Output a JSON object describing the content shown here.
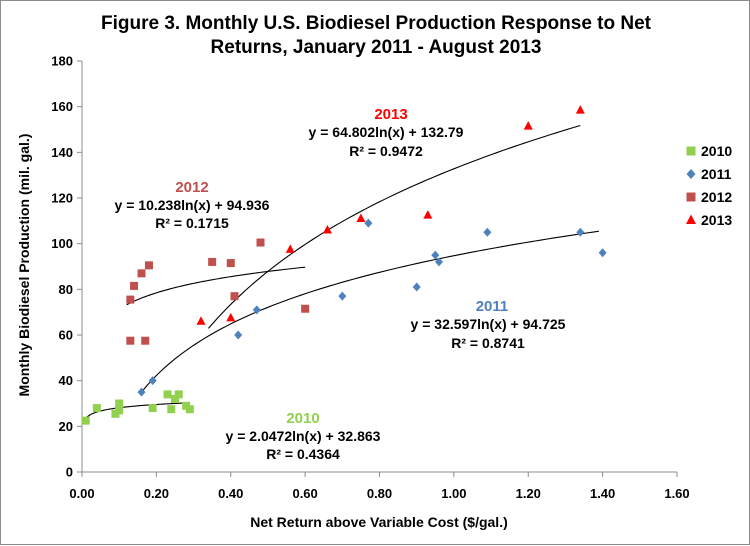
{
  "chart_data": {
    "type": "scatter",
    "title_lines": [
      "Figure 3. Monthly U.S. Biodiesel Production Response to Net",
      "Returns, January 2011 - August 2013"
    ],
    "xlabel": "Net Return above Variable Cost ($/gal.)",
    "ylabel": "Monthly Biodiesel Production (mil. gal.)",
    "xlim": [
      0,
      1.6
    ],
    "ylim": [
      0,
      180
    ],
    "x_ticks": [
      "0.00",
      "0.20",
      "0.40",
      "0.60",
      "0.80",
      "1.00",
      "1.20",
      "1.40",
      "1.60"
    ],
    "y_ticks": [
      "0",
      "20",
      "40",
      "60",
      "80",
      "100",
      "120",
      "140",
      "160",
      "180"
    ],
    "x_tick_values": [
      0,
      0.2,
      0.4,
      0.6,
      0.8,
      1.0,
      1.2,
      1.4,
      1.6
    ],
    "y_tick_values": [
      0,
      20,
      40,
      60,
      80,
      100,
      120,
      140,
      160,
      180
    ],
    "grid": false,
    "legend_position": "right",
    "series": [
      {
        "name": "2010",
        "color": "#92d050",
        "marker": "square",
        "points": [
          [
            0.01,
            22.5
          ],
          [
            0.04,
            28
          ],
          [
            0.09,
            25.5
          ],
          [
            0.1,
            27
          ],
          [
            0.1,
            30
          ],
          [
            0.19,
            28
          ],
          [
            0.23,
            34
          ],
          [
            0.24,
            27.5
          ],
          [
            0.25,
            32
          ],
          [
            0.26,
            34
          ],
          [
            0.28,
            29
          ],
          [
            0.29,
            27.5
          ]
        ],
        "trend": {
          "a": 2.0472,
          "b": 32.863,
          "x_range": [
            0.0,
            0.28
          ]
        },
        "equation": "y = 2.0472ln(x) + 32.863",
        "r2": "R² = 0.4364"
      },
      {
        "name": "2011",
        "color": "#4f81bd",
        "marker": "diamond",
        "points": [
          [
            0.16,
            35
          ],
          [
            0.19,
            40
          ],
          [
            0.42,
            60
          ],
          [
            0.47,
            71
          ],
          [
            0.7,
            77
          ],
          [
            0.77,
            109
          ],
          [
            0.9,
            81
          ],
          [
            0.95,
            95
          ],
          [
            0.96,
            92
          ],
          [
            1.09,
            105
          ],
          [
            1.34,
            105
          ],
          [
            1.4,
            96
          ]
        ],
        "trend": {
          "a": 32.597,
          "b": 94.725,
          "x_range": [
            0.16,
            1.39
          ]
        },
        "equation": "y = 32.597ln(x) + 94.725",
        "r2": "R² = 0.8741"
      },
      {
        "name": "2012",
        "color": "#c0504d",
        "marker": "square",
        "points": [
          [
            0.13,
            75.5
          ],
          [
            0.13,
            57.5
          ],
          [
            0.14,
            81.5
          ],
          [
            0.16,
            87
          ],
          [
            0.17,
            57.5
          ],
          [
            0.18,
            90.5
          ],
          [
            0.35,
            92
          ],
          [
            0.4,
            91.5
          ],
          [
            0.41,
            77
          ],
          [
            0.48,
            100.5
          ],
          [
            0.6,
            71.5
          ]
        ],
        "trend": {
          "a": 10.238,
          "b": 94.936,
          "x_range": [
            0.12,
            0.6
          ]
        },
        "equation": "y = 10.238ln(x) + 94.936",
        "r2": "R² = 0.1715"
      },
      {
        "name": "2013",
        "color": "#ff0000",
        "marker": "triangle",
        "points": [
          [
            0.32,
            66
          ],
          [
            0.4,
            67.5
          ],
          [
            0.56,
            97.5
          ],
          [
            0.66,
            106
          ],
          [
            0.75,
            111
          ],
          [
            0.93,
            112.5
          ],
          [
            1.2,
            151.5
          ],
          [
            1.34,
            158.5
          ]
        ],
        "trend": {
          "a": 64.802,
          "b": 132.79,
          "x_range": [
            0.34,
            1.34
          ]
        },
        "equation": "y = 64.802ln(x) + 132.79",
        "r2": "R² = 0.9472"
      }
    ]
  }
}
